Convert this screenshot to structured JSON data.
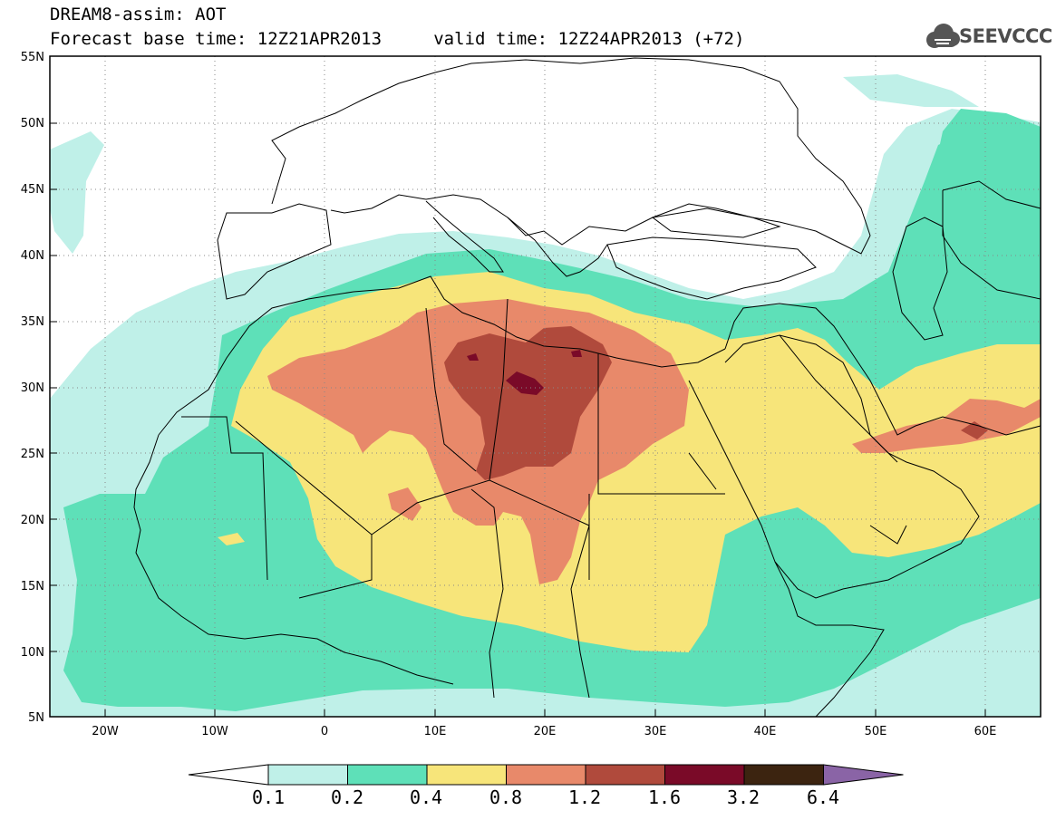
{
  "title": {
    "line1": "DREAM8-assim: AOT",
    "line2": "Forecast base time: 12Z21APR2013     valid time: 12Z24APR2013 (+72)"
  },
  "logo": {
    "text": "SEEVCCC",
    "icon": "cloud-logo-icon"
  },
  "map": {
    "lon_range": [
      -25,
      65
    ],
    "lat_range": [
      5,
      55
    ],
    "lat_labels": [
      "55N",
      "50N",
      "45N",
      "40N",
      "35N",
      "30N",
      "25N",
      "20N",
      "15N",
      "10N",
      "5N"
    ],
    "lon_labels": [
      "20W",
      "10W",
      "0",
      "10E",
      "20E",
      "30E",
      "40E",
      "50E",
      "60E"
    ],
    "grid": "dotted"
  },
  "colorbar": {
    "labels": [
      "0.1",
      "0.2",
      "0.4",
      "0.8",
      "1.2",
      "1.6",
      "3.2",
      "6.4"
    ],
    "colors": [
      "#ffffff",
      "#bff0e8",
      "#5ee0b8",
      "#f7e57a",
      "#e8896a",
      "#b04a3c",
      "#7a0a28",
      "#3c2410",
      "#8a64a6"
    ]
  }
}
